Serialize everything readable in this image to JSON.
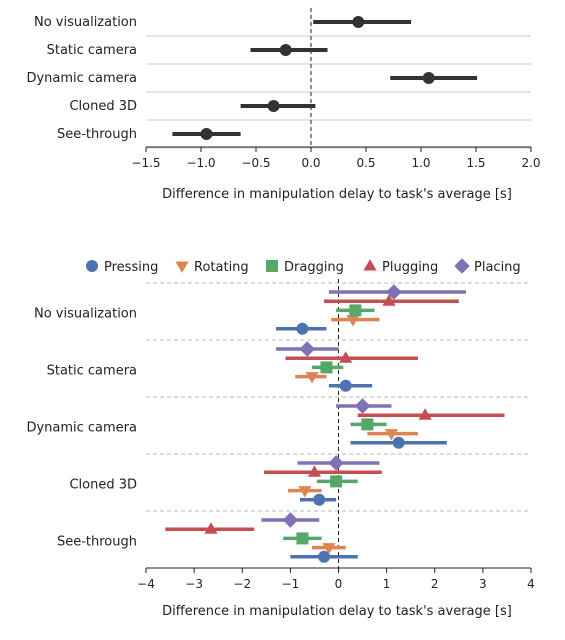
{
  "chart_data": [
    {
      "type": "scatter",
      "title": "",
      "xlabel": "Difference in manipulation delay to task's average [s]",
      "ylabel": "",
      "xlim": [
        -1.5,
        2.0
      ],
      "xticks": [
        -1.5,
        -1.0,
        -0.5,
        0.0,
        0.5,
        1.0,
        1.5,
        2.0
      ],
      "xtick_labels": [
        "−1.5",
        "−1.0",
        "−0.5",
        "0.0",
        "0.5",
        "1.0",
        "1.5",
        "2.0"
      ],
      "categories": [
        "No visualization",
        "Static camera",
        "Dynamic camera",
        "Cloned 3D",
        "See-through"
      ],
      "grid": "horizontal",
      "reference_line": 0,
      "color": "#333333",
      "points": [
        {
          "category": "No visualization",
          "mean": 0.43,
          "ci": [
            0.02,
            0.91
          ]
        },
        {
          "category": "Static camera",
          "mean": -0.23,
          "ci": [
            -0.55,
            0.15
          ]
        },
        {
          "category": "Dynamic camera",
          "mean": 1.07,
          "ci": [
            0.72,
            1.51
          ]
        },
        {
          "category": "Cloned 3D",
          "mean": -0.34,
          "ci": [
            -0.64,
            0.04
          ]
        },
        {
          "category": "See-through",
          "mean": -0.95,
          "ci": [
            -1.26,
            -0.64
          ]
        }
      ]
    },
    {
      "type": "scatter",
      "title": "",
      "xlabel": "Difference in manipulation delay to task's average [s]",
      "ylabel": "",
      "xlim": [
        -4,
        4
      ],
      "xticks": [
        -4,
        -3,
        -2,
        -1,
        0,
        1,
        2,
        3,
        4
      ],
      "xtick_labels": [
        "−4",
        "−3",
        "−2",
        "−1",
        "0",
        "1",
        "2",
        "3",
        "4"
      ],
      "categories": [
        "No visualization",
        "Static camera",
        "Dynamic camera",
        "Cloned 3D",
        "See-through"
      ],
      "legend_position": "top",
      "grid": "group separators (dashed)",
      "reference_line": 0,
      "series": [
        {
          "name": "Pressing",
          "color": "#4c72b0",
          "marker": "circle",
          "points": [
            {
              "category": "No visualization",
              "mean": -0.75,
              "ci": [
                -1.3,
                -0.25
              ]
            },
            {
              "category": "Static camera",
              "mean": 0.15,
              "ci": [
                -0.2,
                0.7
              ]
            },
            {
              "category": "Dynamic camera",
              "mean": 1.25,
              "ci": [
                0.25,
                2.25
              ]
            },
            {
              "category": "Cloned 3D",
              "mean": -0.4,
              "ci": [
                -0.8,
                -0.05
              ]
            },
            {
              "category": "See-through",
              "mean": -0.3,
              "ci": [
                -1.0,
                0.4
              ]
            }
          ]
        },
        {
          "name": "Rotating",
          "color": "#dd8452",
          "marker": "triangle-down",
          "points": [
            {
              "category": "No visualization",
              "mean": 0.3,
              "ci": [
                -0.15,
                0.85
              ]
            },
            {
              "category": "Static camera",
              "mean": -0.55,
              "ci": [
                -0.9,
                -0.25
              ]
            },
            {
              "category": "Dynamic camera",
              "mean": 1.1,
              "ci": [
                0.6,
                1.65
              ]
            },
            {
              "category": "Cloned 3D",
              "mean": -0.7,
              "ci": [
                -1.05,
                -0.35
              ]
            },
            {
              "category": "See-through",
              "mean": -0.2,
              "ci": [
                -0.55,
                0.15
              ]
            }
          ]
        },
        {
          "name": "Dragging",
          "color": "#55a868",
          "marker": "square",
          "points": [
            {
              "category": "No visualization",
              "mean": 0.35,
              "ci": [
                -0.05,
                0.75
              ]
            },
            {
              "category": "Static camera",
              "mean": -0.25,
              "ci": [
                -0.55,
                0.1
              ]
            },
            {
              "category": "Dynamic camera",
              "mean": 0.6,
              "ci": [
                0.25,
                1.0
              ]
            },
            {
              "category": "Cloned 3D",
              "mean": -0.05,
              "ci": [
                -0.45,
                0.4
              ]
            },
            {
              "category": "See-through",
              "mean": -0.75,
              "ci": [
                -1.15,
                -0.35
              ]
            }
          ]
        },
        {
          "name": "Plugging",
          "color": "#c44e52",
          "marker": "triangle-up",
          "points": [
            {
              "category": "No visualization",
              "mean": 1.05,
              "ci": [
                -0.3,
                2.5
              ]
            },
            {
              "category": "Static camera",
              "mean": 0.15,
              "ci": [
                -1.1,
                1.65
              ]
            },
            {
              "category": "Dynamic camera",
              "mean": 1.8,
              "ci": [
                0.4,
                3.45
              ]
            },
            {
              "category": "Cloned 3D",
              "mean": -0.5,
              "ci": [
                -1.55,
                0.9
              ]
            },
            {
              "category": "See-through",
              "mean": -2.65,
              "ci": [
                -3.6,
                -1.75
              ]
            }
          ]
        },
        {
          "name": "Placing",
          "color": "#8172b3",
          "marker": "diamond",
          "points": [
            {
              "category": "No visualization",
              "mean": 1.15,
              "ci": [
                -0.2,
                2.65
              ]
            },
            {
              "category": "Static camera",
              "mean": -0.65,
              "ci": [
                -1.3,
                0.0
              ]
            },
            {
              "category": "Dynamic camera",
              "mean": 0.5,
              "ci": [
                -0.05,
                1.1
              ]
            },
            {
              "category": "Cloned 3D",
              "mean": -0.05,
              "ci": [
                -0.85,
                0.85
              ]
            },
            {
              "category": "See-through",
              "mean": -1.0,
              "ci": [
                -1.6,
                -0.4
              ]
            }
          ]
        }
      ]
    }
  ]
}
